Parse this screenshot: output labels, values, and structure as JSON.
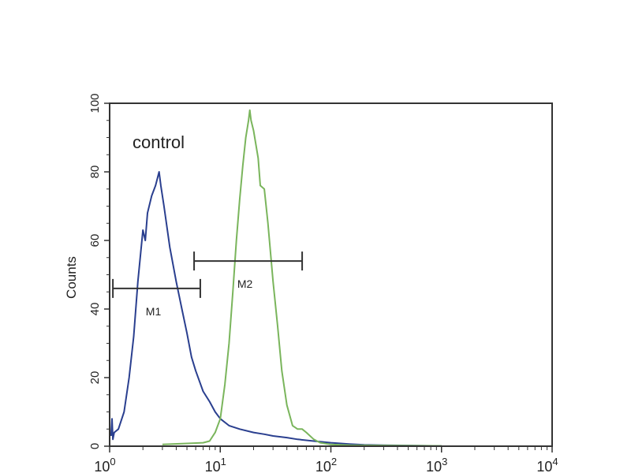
{
  "chart_data": {
    "type": "line",
    "title": "",
    "xlabel": "",
    "ylabel": "Counts",
    "xscale": "log",
    "xlim": [
      1,
      10000
    ],
    "ylim": [
      0,
      100
    ],
    "grid": false,
    "x_ticks": [
      {
        "base": "10",
        "exp": "0",
        "value": 1
      },
      {
        "base": "10",
        "exp": "1",
        "value": 10
      },
      {
        "base": "10",
        "exp": "2",
        "value": 100
      },
      {
        "base": "10",
        "exp": "3",
        "value": 1000
      },
      {
        "base": "10",
        "exp": "4",
        "value": 10000
      }
    ],
    "y_ticks": [
      "0",
      "20",
      "40",
      "60",
      "80",
      "100"
    ],
    "annotation": "control",
    "series": [
      {
        "color": "#2a3f8f",
        "x": [
          1.03,
          1.05,
          1.07,
          1.1,
          1.2,
          1.35,
          1.5,
          1.65,
          1.8,
          2.0,
          2.1,
          2.2,
          2.4,
          2.6,
          2.8,
          2.9,
          3.1,
          3.5,
          4.0,
          4.5,
          5.0,
          5.5,
          6.0,
          7.0,
          8.0,
          9.0,
          10,
          12,
          15,
          20,
          25,
          30,
          40,
          50,
          70,
          100,
          150,
          200,
          300,
          500,
          1000
        ],
        "y": [
          3,
          8,
          2,
          4,
          5,
          10,
          20,
          32,
          48,
          63,
          60,
          68,
          73,
          76,
          80,
          76,
          70,
          58,
          48,
          40,
          33,
          26,
          22,
          16,
          13,
          10,
          8,
          6,
          5,
          4,
          3.5,
          3,
          2.5,
          2,
          1.5,
          1,
          0.6,
          0.4,
          0.3,
          0.2,
          0.1
        ]
      },
      {
        "color": "#7ab55c",
        "x": [
          3,
          5,
          7,
          8,
          9,
          10,
          11,
          12,
          13,
          14,
          15,
          16,
          17,
          18,
          18.5,
          19,
          20,
          21,
          22,
          23,
          25,
          27,
          30,
          33,
          36,
          40,
          45,
          50,
          55,
          60,
          70,
          80,
          100,
          150,
          300,
          1000
        ],
        "y": [
          0.5,
          0.8,
          1,
          1.5,
          4,
          8,
          18,
          30,
          45,
          60,
          72,
          82,
          90,
          95,
          98,
          95,
          92,
          88,
          84,
          76,
          75,
          65,
          48,
          35,
          22,
          12,
          6,
          5,
          5,
          4,
          2,
          1,
          0.5,
          0.3,
          0.2,
          0.1
        ]
      }
    ],
    "markers": [
      {
        "label": "M1",
        "x_start": 1.07,
        "x_end": 6.6,
        "y": 46
      },
      {
        "label": "M2",
        "x_start": 5.8,
        "x_end": 55,
        "y": 54
      }
    ]
  }
}
